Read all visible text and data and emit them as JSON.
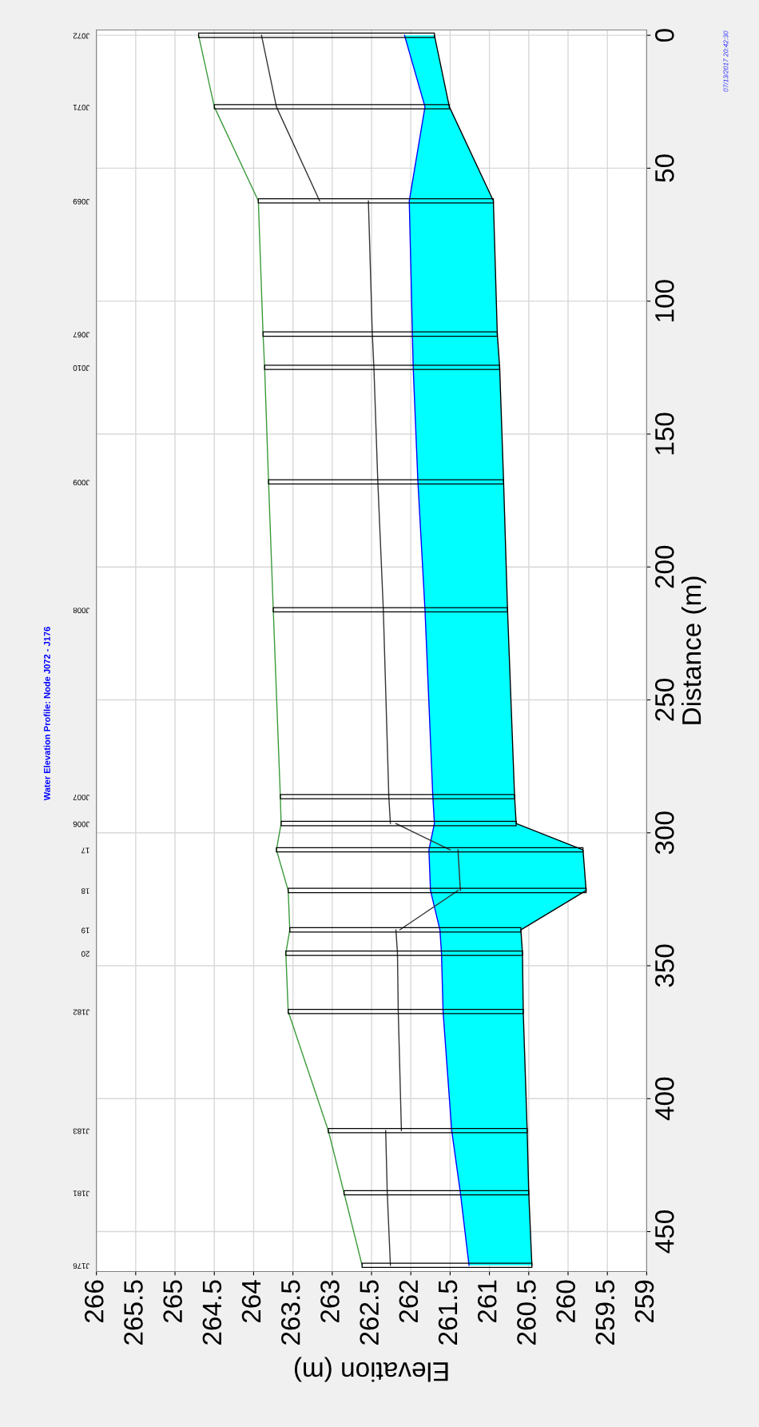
{
  "chart_data": {
    "type": "line",
    "orientation": "horizontal",
    "title": "Water Elevation Profile: Node J072 - J176",
    "xlabel": "Elevation (m)",
    "ylabel": "Distance (m)",
    "annotations": [
      "07/13/2017 20:42:30",
      "J072",
      "J071",
      "J069",
      "J067",
      "J010",
      "J009",
      "J008",
      "J007",
      "J006",
      "17",
      "18",
      "19",
      "20",
      "J182",
      "J183",
      "J181",
      "J176"
    ],
    "xlim": [
      266,
      259
    ],
    "xticks": [
      266,
      265.5,
      265,
      264.5,
      264,
      263.5,
      263,
      262.5,
      262,
      261.5,
      261,
      260.5,
      260,
      259.5,
      259
    ],
    "ylim": [
      465,
      -2
    ],
    "yticks": [
      0,
      50,
      100,
      150,
      200,
      250,
      300,
      350,
      400,
      450
    ],
    "grid": true,
    "series": [
      {
        "color": "#0000ff",
        "x": [
          0,
          26.9,
          62.3,
          112.4,
          124.9,
          168,
          216.1,
          286.4,
          296.5,
          306.4,
          321.7,
          336.5,
          345.3,
          367.2,
          412,
          435.4,
          462.7
        ],
        "values": [
          262.08,
          261.82,
          262.02,
          261.98,
          261.97,
          261.91,
          261.82,
          261.72,
          261.7,
          261.77,
          261.75,
          261.63,
          261.61,
          261.59,
          261.48,
          261.37,
          261.26
        ],
        "upper": [
          262.08,
          261.82,
          262.02,
          261.98,
          261.97,
          261.91,
          261.82,
          261.72,
          261.7,
          261.77,
          261.75,
          261.63,
          261.61,
          261.59,
          261.48,
          261.37,
          261.26
        ],
        "lower": [
          261.7,
          261.51,
          260.95,
          260.9,
          260.87,
          260.82,
          260.77,
          260.68,
          260.66,
          259.81,
          259.77,
          260.6,
          260.58,
          260.57,
          260.52,
          260.5,
          260.46
        ]
      },
      {
        "color": "#000000",
        "x": [
          0,
          26.9,
          62.3,
          112.4,
          124.9,
          168,
          216.1,
          286.4,
          296.5,
          306.4,
          321.7,
          336.5,
          345.3,
          367.2,
          412,
          435.4,
          462.7
        ],
        "values": [
          261.7,
          261.51,
          260.95,
          260.9,
          260.87,
          260.82,
          260.77,
          260.68,
          260.66,
          259.81,
          259.77,
          260.6,
          260.58,
          260.57,
          260.52,
          260.5,
          260.46
        ]
      },
      {
        "color": "#3a9a3a",
        "x": [
          0,
          26.9,
          62.3,
          112.4,
          124.9,
          168,
          216.1,
          286.4,
          296.5,
          306.4,
          321.7,
          336.5,
          345.3,
          367.2,
          412,
          435.4,
          462.7
        ],
        "values": [
          264.7,
          264.5,
          263.94,
          263.88,
          263.86,
          263.81,
          263.75,
          263.66,
          263.65,
          263.71,
          263.56,
          263.54,
          263.59,
          263.56,
          263.05,
          262.85,
          262.62
        ]
      },
      {
        "color": "#333333",
        "x": [
          0,
          26.9,
          62.3
        ],
        "values": [
          263.9,
          263.71,
          263.16
        ]
      },
      {
        "color": "#333333",
        "x": [
          62.3,
          112.4,
          124.9,
          168,
          216.1,
          286.4,
          296.5
        ],
        "values": [
          262.54,
          262.49,
          262.47,
          262.42,
          262.35,
          262.28,
          262.26
        ]
      },
      {
        "color": "#333333",
        "x": [
          296.5,
          306.4
        ],
        "values": [
          262.19,
          261.5
        ]
      },
      {
        "color": "#333333",
        "x": [
          306.4,
          321.7
        ],
        "values": [
          261.4,
          261.37
        ]
      },
      {
        "color": "#333333",
        "x": [
          321.7,
          336.5
        ],
        "values": [
          261.4,
          262.14
        ]
      },
      {
        "color": "#333333",
        "x": [
          336.5,
          345.3,
          367.2,
          412
        ],
        "values": [
          262.19,
          262.17,
          262.16,
          262.12
        ]
      },
      {
        "color": "#333333",
        "x": [
          412,
          435.4,
          462.7
        ],
        "values": [
          262.32,
          262.3,
          262.26
        ]
      },
      {
        "type": "bar",
        "color": "#000000",
        "x": [
          0,
          26.9,
          62.3,
          112.4,
          124.9,
          168,
          216.1,
          286.4,
          296.5,
          306.4,
          321.7,
          336.5,
          345.3,
          367.2,
          412,
          435.4,
          462.7
        ],
        "base": [
          261.7,
          261.51,
          260.95,
          260.9,
          260.87,
          260.82,
          260.77,
          260.68,
          260.66,
          259.81,
          259.77,
          260.6,
          260.58,
          260.57,
          260.52,
          260.5,
          260.46
        ],
        "values": [
          3.0,
          2.99,
          2.99,
          2.98,
          2.99,
          2.99,
          2.98,
          2.98,
          2.99,
          3.9,
          3.79,
          2.94,
          3.01,
          2.99,
          2.53,
          2.35,
          2.16
        ]
      }
    ]
  }
}
